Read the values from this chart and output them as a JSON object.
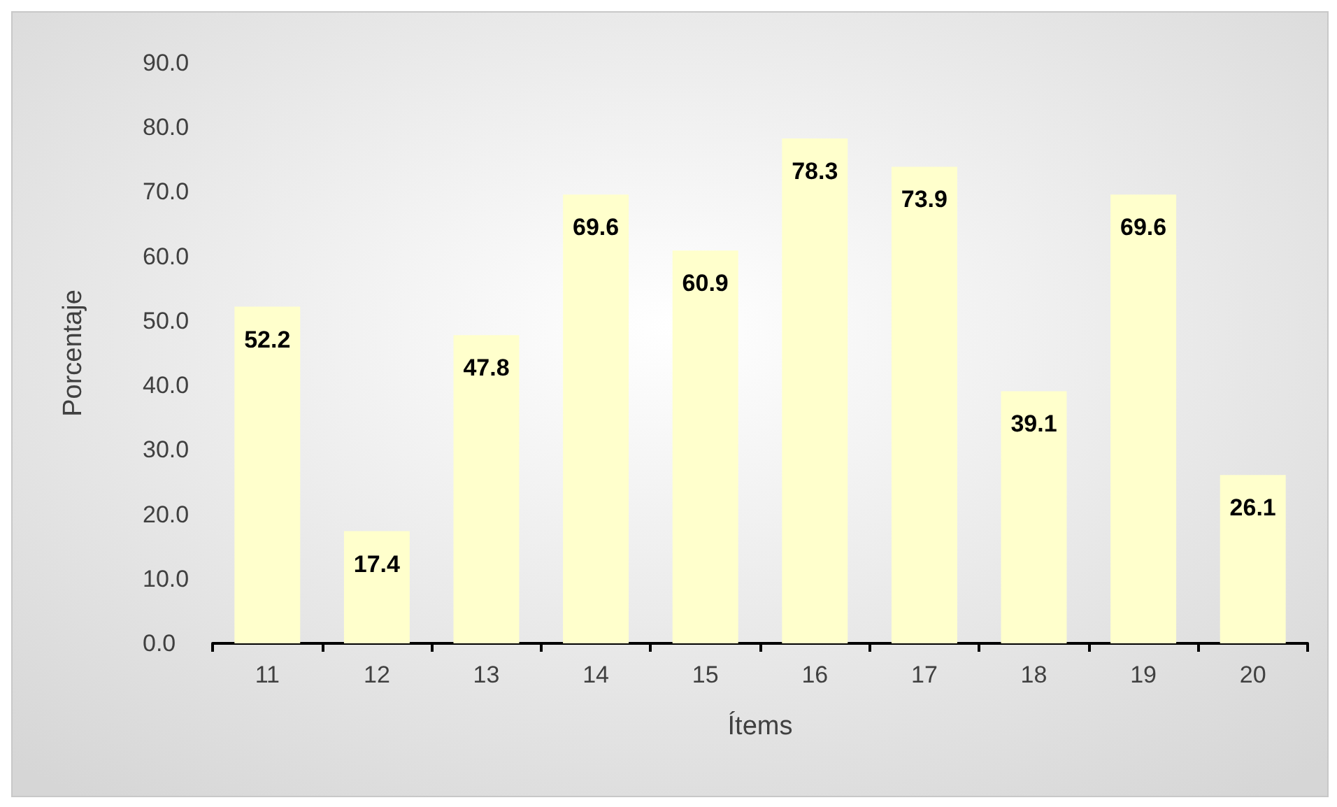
{
  "chart_data": {
    "type": "bar",
    "xlabel": "Ítems",
    "ylabel": "Porcentaje",
    "categories": [
      "11",
      "12",
      "13",
      "14",
      "15",
      "16",
      "17",
      "18",
      "19",
      "20"
    ],
    "values": [
      52.2,
      17.4,
      47.8,
      69.6,
      60.9,
      78.3,
      73.9,
      39.1,
      69.6,
      26.1
    ],
    "color": "#ffffcc",
    "ylim": [
      0,
      90
    ],
    "yticks": [
      {
        "value": 0,
        "label": "0.0"
      },
      {
        "value": 10,
        "label": "10.0"
      },
      {
        "value": 20,
        "label": "20.0"
      },
      {
        "value": 30,
        "label": "30.0"
      },
      {
        "value": 40,
        "label": "40.0"
      },
      {
        "value": 50,
        "label": "50.0"
      },
      {
        "value": 60,
        "label": "60.0"
      },
      {
        "value": 70,
        "label": "70.0"
      },
      {
        "value": 80,
        "label": "80.0"
      },
      {
        "value": 90,
        "label": "90.0"
      }
    ],
    "data_labels": true,
    "grid": false
  }
}
